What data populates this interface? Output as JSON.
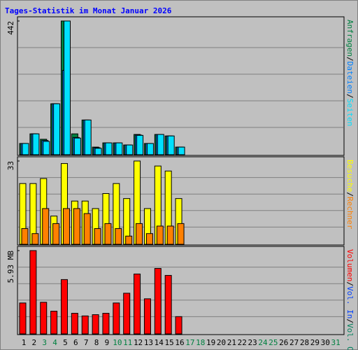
{
  "chart_data": {
    "type": "bar",
    "title": "Tages-Statistik im Monat Januar 2026",
    "title_color": "#0000ff",
    "separator": "/",
    "categories": [
      1,
      2,
      3,
      4,
      5,
      6,
      7,
      8,
      9,
      10,
      11,
      12,
      13,
      14,
      15,
      16,
      17,
      18,
      19,
      20,
      21,
      22,
      23,
      24,
      25,
      26,
      27,
      28,
      29,
      30,
      31
    ],
    "category_colors": [
      "#000000",
      "#000000",
      "#008040",
      "#008040",
      "#000000",
      "#000000",
      "#000000",
      "#000000",
      "#000000",
      "#008040",
      "#008040",
      "#000000",
      "#000000",
      "#000000",
      "#000000",
      "#000000",
      "#008040",
      "#008040",
      "#000000",
      "#000000",
      "#000000",
      "#000000",
      "#000000",
      "#008040",
      "#008040",
      "#000000",
      "#000000",
      "#000000",
      "#000000",
      "#000000",
      "#008040"
    ],
    "panels": [
      {
        "ylim": [
          0,
          442
        ],
        "yticks": [
          442
        ],
        "series": [
          {
            "name": "Anfragen",
            "color": "#008040",
            "values": [
              35,
              67,
              49,
              167,
              442,
              67,
              113,
              23,
              37,
              37,
              30,
              65,
              35,
              65,
              60,
              23,
              null,
              null,
              null,
              null,
              null,
              null,
              null,
              null,
              null,
              null,
              null,
              null,
              null,
              null,
              null
            ]
          },
          {
            "name": "Dateien",
            "color": "#0080ff",
            "values": [
              35,
              67,
              45,
              167,
              278,
              55,
              113,
              21,
              37,
              37,
              30,
              63,
              35,
              65,
              60,
              23,
              null,
              null,
              null,
              null,
              null,
              null,
              null,
              null,
              null,
              null,
              null,
              null,
              null,
              null,
              null
            ]
          },
          {
            "name": "Seiten",
            "color": "#00e0ff",
            "values": [
              35,
              67,
              42,
              167,
              442,
              53,
              113,
              19,
              37,
              37,
              30,
              62,
              35,
              65,
              60,
              23,
              null,
              null,
              null,
              null,
              null,
              null,
              null,
              null,
              null,
              null,
              null,
              null,
              null,
              null,
              null
            ]
          }
        ]
      },
      {
        "ylim": [
          0,
          33
        ],
        "yticks": [
          33
        ],
        "series": [
          {
            "name": "Besuche",
            "color": "#ffff00",
            "values": [
              24,
              24,
              26,
              11,
              32,
              17,
              17,
              14,
              20,
              24,
              18,
              33,
              14,
              31,
              29,
              18,
              null,
              null,
              null,
              null,
              null,
              null,
              null,
              null,
              null,
              null,
              null,
              null,
              null,
              null,
              null
            ]
          },
          {
            "name": "Rechner",
            "color": "#ff8000",
            "values": [
              6,
              4,
              14,
              8,
              14,
              14,
              12,
              6,
              8,
              6,
              3,
              8,
              4,
              7,
              7,
              8,
              null,
              null,
              null,
              null,
              null,
              null,
              null,
              null,
              null,
              null,
              null,
              null,
              null,
              null,
              null
            ]
          }
        ]
      },
      {
        "ylim": [
          0,
          5.93
        ],
        "yticks": [
          {
            "value": 5.93,
            "label": "5.93 MB"
          }
        ],
        "series": [
          {
            "name": "Volumen",
            "color": "#ff0000",
            "values": [
              2.17,
              5.93,
              2.22,
              1.58,
              3.85,
              1.43,
              1.24,
              1.33,
              1.43,
              2.17,
              2.87,
              4.25,
              2.47,
              4.65,
              4.15,
              1.19,
              null,
              null,
              null,
              null,
              null,
              null,
              null,
              null,
              null,
              null,
              null,
              null,
              null,
              null,
              null
            ]
          },
          {
            "name": "Vol. In",
            "color": "#0040ff",
            "values": [
              null,
              null,
              null,
              null,
              null,
              null,
              null,
              null,
              null,
              null,
              null,
              null,
              null,
              null,
              null,
              null,
              null,
              null,
              null,
              null,
              null,
              null,
              null,
              null,
              null,
              null,
              null,
              null,
              null,
              null,
              null
            ]
          },
          {
            "name": "Vol. Out",
            "color": "#00805c",
            "values": [
              null,
              null,
              null,
              null,
              null,
              null,
              null,
              null,
              null,
              null,
              null,
              null,
              null,
              null,
              null,
              null,
              null,
              null,
              null,
              null,
              null,
              null,
              null,
              null,
              null,
              null,
              null,
              null,
              null,
              null,
              null
            ]
          }
        ]
      }
    ]
  }
}
